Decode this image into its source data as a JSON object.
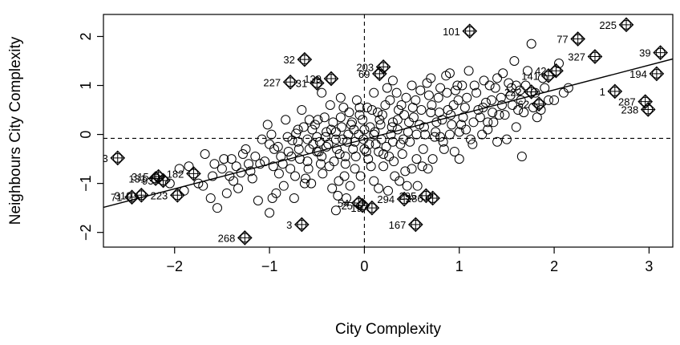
{
  "chart_data": {
    "type": "scatter",
    "xlabel": "City Complexity",
    "ylabel": "Neighbours City Complexity",
    "xlim": [
      -2.75,
      3.25
    ],
    "ylim": [
      -2.3,
      2.45
    ],
    "xticks": [
      -2,
      -1,
      0,
      1,
      2,
      3
    ],
    "yticks": [
      -2,
      -1,
      0,
      1,
      2
    ],
    "xtick_labels": [
      "−2",
      "−1",
      "0",
      "1",
      "2",
      "3"
    ],
    "ytick_labels": [
      "−2",
      "−1",
      "0",
      "1",
      "2"
    ],
    "reference_lines": {
      "vertical_x": 0,
      "horizontal_y": -0.08,
      "style": "dashed"
    },
    "regression_line": {
      "slope": 0.505,
      "intercept": -0.1
    },
    "influential_points": [
      {
        "label": "225",
        "x": 2.76,
        "y": 2.24
      },
      {
        "label": "101",
        "x": 1.11,
        "y": 2.11
      },
      {
        "label": "77",
        "x": 2.25,
        "y": 1.95
      },
      {
        "label": "39",
        "x": 3.12,
        "y": 1.67
      },
      {
        "label": "327",
        "x": 2.43,
        "y": 1.59
      },
      {
        "label": "32",
        "x": -0.63,
        "y": 1.53
      },
      {
        "label": "203",
        "x": 0.2,
        "y": 1.38
      },
      {
        "label": "42",
        "x": 2.02,
        "y": 1.3
      },
      {
        "label": "69",
        "x": 0.16,
        "y": 1.24
      },
      {
        "label": "194",
        "x": 3.08,
        "y": 1.24
      },
      {
        "label": "141",
        "x": 1.94,
        "y": 1.2
      },
      {
        "label": "139",
        "x": -0.35,
        "y": 1.14
      },
      {
        "label": "227",
        "x": -0.78,
        "y": 1.07
      },
      {
        "label": "31",
        "x": -0.5,
        "y": 1.05
      },
      {
        "label": "1",
        "x": 2.64,
        "y": 0.88
      },
      {
        "label": "222",
        "x": 1.76,
        "y": 0.87
      },
      {
        "label": "287",
        "x": 2.96,
        "y": 0.67
      },
      {
        "label": "62",
        "x": 1.84,
        "y": 0.62
      },
      {
        "label": "238",
        "x": 2.99,
        "y": 0.51
      },
      {
        "label": "3",
        "x": -2.6,
        "y": -0.48
      },
      {
        "label": "182",
        "x": -1.8,
        "y": -0.8
      },
      {
        "label": "315",
        "x": -2.17,
        "y": -0.86
      },
      {
        "label": "131",
        "x": -2.2,
        "y": -0.9
      },
      {
        "label": "93",
        "x": -2.12,
        "y": -0.94
      },
      {
        "label": "310",
        "x": -2.35,
        "y": -1.24
      },
      {
        "label": "223",
        "x": -1.97,
        "y": -1.24
      },
      {
        "label": "71",
        "x": -2.45,
        "y": -1.28
      },
      {
        "label": "295",
        "x": 0.65,
        "y": -1.25
      },
      {
        "label": "286",
        "x": 0.72,
        "y": -1.3
      },
      {
        "label": "294",
        "x": 0.42,
        "y": -1.32
      },
      {
        "label": "54",
        "x": -0.06,
        "y": -1.4
      },
      {
        "label": "25",
        "x": -0.02,
        "y": -1.45
      },
      {
        "label": "19",
        "x": 0.08,
        "y": -1.5
      },
      {
        "label": "167",
        "x": 0.54,
        "y": -1.84
      },
      {
        "label": "3",
        "x": -0.66,
        "y": -1.84
      },
      {
        "label": "268",
        "x": -1.26,
        "y": -2.11
      }
    ],
    "points": [
      [
        -1.55,
        -1.5
      ],
      [
        -1.45,
        -1.2
      ],
      [
        -1.38,
        -0.95
      ],
      [
        -1.3,
        -0.78
      ],
      [
        -1.22,
        -0.6
      ],
      [
        -1.15,
        -0.45
      ],
      [
        -1.08,
        -0.1
      ],
      [
        -1.02,
        0.2
      ],
      [
        -0.95,
        -0.3
      ],
      [
        -0.9,
        -0.8
      ],
      [
        -0.85,
        -1.05
      ],
      [
        -0.8,
        -0.35
      ],
      [
        -0.76,
        -0.12
      ],
      [
        -0.72,
        0.02
      ],
      [
        -0.68,
        -0.5
      ],
      [
        -0.62,
        -0.9
      ],
      [
        -0.58,
        -0.3
      ],
      [
        -0.55,
        0.1
      ],
      [
        -0.5,
        -0.05
      ],
      [
        -0.46,
        -0.6
      ],
      [
        -0.42,
        0.35
      ],
      [
        -0.38,
        -0.2
      ],
      [
        -0.34,
        -1.1
      ],
      [
        -0.3,
        0.05
      ],
      [
        -0.26,
        -0.4
      ],
      [
        -0.22,
        0.55
      ],
      [
        -0.18,
        -0.15
      ],
      [
        -0.14,
        0.2
      ],
      [
        -0.1,
        -0.7
      ],
      [
        -0.06,
        0.0
      ],
      [
        -0.02,
        0.3
      ],
      [
        0.02,
        -0.35
      ],
      [
        0.06,
        0.15
      ],
      [
        0.1,
        -0.95
      ],
      [
        0.14,
        0.45
      ],
      [
        0.18,
        -0.1
      ],
      [
        0.22,
        0.6
      ],
      [
        0.26,
        -0.45
      ],
      [
        0.3,
        0.25
      ],
      [
        0.34,
        0.85
      ],
      [
        0.38,
        -0.2
      ],
      [
        0.42,
        0.4
      ],
      [
        0.46,
        0.05
      ],
      [
        0.5,
        -0.7
      ],
      [
        0.54,
        0.7
      ],
      [
        0.58,
        0.2
      ],
      [
        0.62,
        -0.3
      ],
      [
        0.66,
        1.05
      ],
      [
        0.7,
        0.45
      ],
      [
        0.74,
        -0.05
      ],
      [
        0.78,
        0.75
      ],
      [
        0.82,
        0.3
      ],
      [
        0.86,
        1.2
      ],
      [
        0.9,
        0.0
      ],
      [
        0.94,
        0.6
      ],
      [
        0.98,
        1.0
      ],
      [
        1.02,
        0.2
      ],
      [
        1.06,
        0.55
      ],
      [
        1.1,
        1.3
      ],
      [
        1.14,
        -0.2
      ],
      [
        1.18,
        0.85
      ],
      [
        1.22,
        0.35
      ],
      [
        1.26,
        1.1
      ],
      [
        1.3,
        0.1
      ],
      [
        1.34,
        0.7
      ],
      [
        1.38,
        0.95
      ],
      [
        1.42,
        0.4
      ],
      [
        1.46,
        1.25
      ],
      [
        1.5,
        -0.1
      ],
      [
        1.54,
        0.8
      ],
      [
        1.58,
        1.5
      ],
      [
        1.62,
        0.5
      ],
      [
        1.66,
        -0.45
      ],
      [
        1.7,
        1.0
      ],
      [
        1.76,
        1.85
      ],
      [
        1.82,
        0.35
      ],
      [
        1.88,
        1.15
      ],
      [
        1.94,
        0.7
      ],
      [
        2.05,
        1.45
      ],
      [
        2.15,
        0.95
      ],
      [
        -1.85,
        -0.65
      ],
      [
        -1.75,
        -1.0
      ],
      [
        -1.68,
        -0.4
      ],
      [
        -1.62,
        -1.3
      ],
      [
        -1.5,
        -0.7
      ],
      [
        -1.4,
        -0.5
      ],
      [
        -1.33,
        -1.1
      ],
      [
        -1.25,
        -0.3
      ],
      [
        -1.18,
        -0.9
      ],
      [
        -1.12,
        -1.35
      ],
      [
        -1.05,
        -0.55
      ],
      [
        -0.98,
        0.0
      ],
      [
        -0.93,
        -1.2
      ],
      [
        -0.88,
        -0.45
      ],
      [
        -0.83,
        0.3
      ],
      [
        -0.78,
        -0.7
      ],
      [
        -0.74,
        -1.3
      ],
      [
        -0.7,
        -0.15
      ],
      [
        -0.66,
        0.5
      ],
      [
        -0.6,
        -0.55
      ],
      [
        -0.56,
        -1.0
      ],
      [
        -0.52,
        0.2
      ],
      [
        -0.48,
        -0.35
      ],
      [
        -0.44,
        -0.8
      ],
      [
        -0.4,
        0.05
      ],
      [
        -0.36,
        0.6
      ],
      [
        -0.32,
        -0.55
      ],
      [
        -0.28,
        -1.25
      ],
      [
        -0.24,
        0.15
      ],
      [
        -0.2,
        -0.6
      ],
      [
        -0.16,
        0.45
      ],
      [
        -0.12,
        -0.3
      ],
      [
        -0.08,
        0.7
      ],
      [
        -0.04,
        -0.85
      ],
      [
        0.0,
        0.1
      ],
      [
        0.04,
        -0.5
      ],
      [
        0.08,
        0.5
      ],
      [
        0.12,
        -0.2
      ],
      [
        0.16,
        0.3
      ],
      [
        0.2,
        -0.65
      ],
      [
        0.24,
        0.95
      ],
      [
        0.28,
        0.0
      ],
      [
        0.32,
        -0.85
      ],
      [
        0.36,
        0.5
      ],
      [
        0.4,
        -0.4
      ],
      [
        0.44,
        0.75
      ],
      [
        0.48,
        -0.15
      ],
      [
        0.52,
        0.35
      ],
      [
        0.56,
        -1.05
      ],
      [
        0.6,
        0.5
      ],
      [
        0.64,
        0.0
      ],
      [
        0.68,
        0.8
      ],
      [
        0.72,
        -0.5
      ],
      [
        0.76,
        0.25
      ],
      [
        0.8,
        0.95
      ],
      [
        0.84,
        -0.3
      ],
      [
        0.88,
        0.5
      ],
      [
        0.92,
        0.2
      ],
      [
        0.96,
        0.9
      ],
      [
        1.0,
        -0.5
      ],
      [
        1.04,
        0.35
      ],
      [
        1.08,
        0.75
      ],
      [
        1.12,
        -0.1
      ],
      [
        1.16,
        1.0
      ],
      [
        1.2,
        0.5
      ],
      [
        1.24,
        0.0
      ],
      [
        1.28,
        0.65
      ],
      [
        1.32,
        1.0
      ],
      [
        1.36,
        0.25
      ],
      [
        1.4,
        -0.15
      ],
      [
        1.44,
        0.75
      ],
      [
        1.48,
        0.4
      ],
      [
        1.52,
        1.05
      ],
      [
        1.56,
        0.6
      ],
      [
        1.6,
        0.15
      ],
      [
        1.64,
        0.9
      ],
      [
        1.68,
        0.45
      ],
      [
        1.72,
        1.3
      ],
      [
        1.8,
        0.85
      ],
      [
        1.86,
        0.5
      ],
      [
        -2.05,
        -1.0
      ],
      [
        -1.95,
        -0.7
      ],
      [
        -1.9,
        -1.15
      ],
      [
        -1.6,
        -0.85
      ],
      [
        -1.48,
        -0.5
      ],
      [
        -1.35,
        -0.65
      ],
      [
        -1.28,
        -0.4
      ],
      [
        -1.2,
        -0.75
      ],
      [
        -1.1,
        -0.6
      ],
      [
        -1.0,
        -0.2
      ],
      [
        -0.96,
        -0.65
      ],
      [
        -0.91,
        -0.25
      ],
      [
        -0.86,
        -0.6
      ],
      [
        -0.81,
        -0.05
      ],
      [
        -0.77,
        -0.45
      ],
      [
        -0.73,
        -0.85
      ],
      [
        -0.69,
        -0.3
      ],
      [
        -0.64,
        0.15
      ],
      [
        -0.59,
        -0.7
      ],
      [
        -0.54,
        -0.2
      ],
      [
        -0.49,
        0.3
      ],
      [
        -0.45,
        -0.45
      ],
      [
        -0.41,
        -0.05
      ],
      [
        -0.37,
        -0.65
      ],
      [
        -0.33,
        0.25
      ],
      [
        -0.29,
        -0.3
      ],
      [
        -0.25,
        0.35
      ],
      [
        -0.21,
        -0.85
      ],
      [
        -0.17,
        0.0
      ],
      [
        -0.13,
        0.25
      ],
      [
        -0.09,
        -0.45
      ],
      [
        -0.05,
        0.4
      ],
      [
        -0.01,
        -0.1
      ],
      [
        0.03,
        0.55
      ],
      [
        0.07,
        -0.65
      ],
      [
        0.11,
        0.05
      ],
      [
        0.15,
        -0.35
      ],
      [
        0.19,
        0.4
      ],
      [
        0.23,
        -0.25
      ],
      [
        0.27,
        0.7
      ],
      [
        0.31,
        -0.55
      ],
      [
        0.35,
        0.1
      ],
      [
        0.39,
        0.6
      ],
      [
        0.43,
        -0.75
      ],
      [
        0.47,
        0.25
      ],
      [
        0.51,
        0.55
      ],
      [
        0.55,
        -0.5
      ],
      [
        0.59,
        0.9
      ],
      [
        0.63,
        0.15
      ],
      [
        0.67,
        -0.7
      ],
      [
        0.71,
        0.6
      ],
      [
        0.75,
        0.05
      ],
      [
        0.79,
        0.45
      ],
      [
        0.83,
        -0.15
      ],
      [
        0.87,
        0.85
      ],
      [
        0.91,
        0.4
      ],
      [
        0.95,
        -0.35
      ],
      [
        0.99,
        0.7
      ],
      [
        1.03,
        1.0
      ],
      [
        1.07,
        0.1
      ],
      [
        -0.6,
        -0.1
      ],
      [
        -0.5,
        -0.35
      ],
      [
        -0.4,
        -0.25
      ],
      [
        -0.3,
        -0.1
      ],
      [
        -0.2,
        -0.45
      ],
      [
        -0.1,
        -0.15
      ],
      [
        0.0,
        -0.3
      ],
      [
        0.1,
        0.0
      ],
      [
        0.2,
        -0.4
      ],
      [
        0.3,
        -0.15
      ],
      [
        -0.7,
        0.1
      ],
      [
        -0.58,
        0.3
      ],
      [
        -0.47,
        -0.15
      ],
      [
        -0.35,
        0.1
      ],
      [
        -0.23,
        -0.1
      ],
      [
        -0.11,
        0.1
      ],
      [
        0.05,
        -0.2
      ],
      [
        0.17,
        0.2
      ],
      [
        0.29,
        0.15
      ],
      [
        0.41,
        -0.1
      ],
      [
        -1.7,
        -1.05
      ],
      [
        -1.58,
        -0.6
      ],
      [
        -1.42,
        -0.85
      ],
      [
        -0.97,
        -1.3
      ],
      [
        -0.63,
        -1.0
      ],
      [
        -0.27,
        -0.95
      ],
      [
        -0.19,
        -1.3
      ],
      [
        0.25,
        -1.15
      ],
      [
        0.37,
        -0.95
      ],
      [
        0.61,
        -0.65
      ],
      [
        1.25,
        0.55
      ],
      [
        1.35,
        0.45
      ],
      [
        1.45,
        0.6
      ],
      [
        1.55,
        0.95
      ],
      [
        1.65,
        0.7
      ],
      [
        1.78,
        0.55
      ],
      [
        1.9,
        0.95
      ],
      [
        2.0,
        0.7
      ],
      [
        2.1,
        0.85
      ],
      [
        1.15,
        0.25
      ],
      [
        -1.0,
        -1.6
      ],
      [
        -0.3,
        -1.55
      ],
      [
        0.15,
        -1.1
      ],
      [
        0.45,
        -1.05
      ],
      [
        -0.15,
        -1.05
      ],
      [
        0.9,
        1.25
      ],
      [
        0.7,
        1.15
      ],
      [
        0.5,
        1.0
      ],
      [
        0.3,
        1.1
      ],
      [
        0.1,
        0.85
      ],
      [
        -0.45,
        0.85
      ],
      [
        -0.25,
        0.75
      ],
      [
        -0.05,
        0.55
      ],
      [
        0.35,
        0.3
      ],
      [
        0.55,
        0.0
      ],
      [
        0.8,
        -0.05
      ],
      [
        1.0,
        0.05
      ],
      [
        1.3,
        0.25
      ],
      [
        1.4,
        1.15
      ],
      [
        1.6,
        1.0
      ]
    ]
  }
}
